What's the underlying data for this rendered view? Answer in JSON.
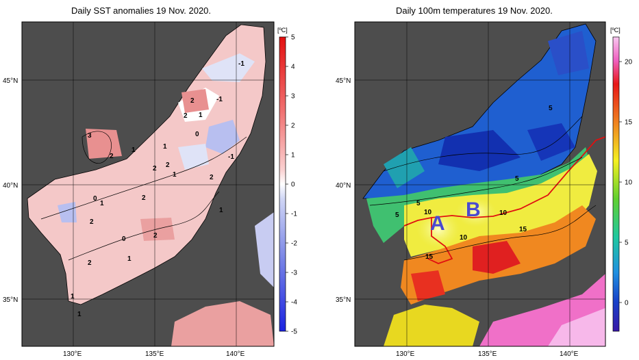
{
  "left_panel": {
    "title": "Daily SST anomalies 19 Nov. 2020.",
    "unit": "[ºC]",
    "colorbar_ticks": [
      "5",
      "4",
      "3",
      "2",
      "1",
      "0",
      "-1",
      "-2",
      "-3",
      "-4",
      "-5"
    ],
    "lat_labels": [
      "45°N",
      "40°N",
      "35°N"
    ],
    "lon_labels": [
      "130°E",
      "135°E",
      "140°E"
    ],
    "contour_labels": [
      "-1",
      "-1",
      "-1",
      "1",
      "2",
      "2",
      "0",
      "3",
      "2",
      "1",
      "1",
      "2",
      "2",
      "1",
      "2",
      "0",
      "1",
      "2",
      "2",
      "0",
      "2",
      "1",
      "2",
      "1",
      "1",
      "1"
    ]
  },
  "right_panel": {
    "title": "Daily 100m temperatures 19 Nov. 2020.",
    "unit": "[ºC]",
    "colorbar_ticks": [
      "20",
      "15",
      "10",
      "5",
      "0"
    ],
    "lat_labels": [
      "45°N",
      "40°N",
      "35°N"
    ],
    "lon_labels": [
      "130°E",
      "135°E",
      "140°E"
    ],
    "contour_labels": [
      "5",
      "5",
      "5",
      "5",
      "10",
      "10",
      "10",
      "15",
      "15"
    ],
    "region_labels": [
      "A",
      "B"
    ]
  }
}
